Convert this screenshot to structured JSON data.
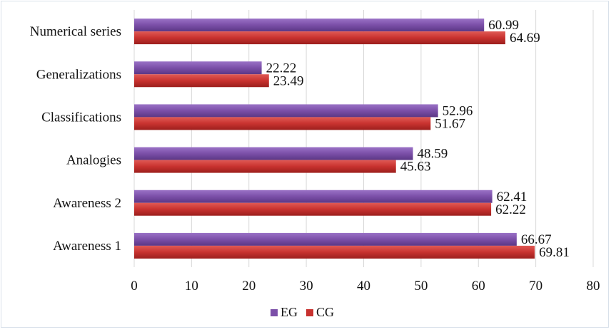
{
  "chart_data": {
    "type": "bar",
    "orientation": "horizontal",
    "title": "",
    "xlabel": "",
    "ylabel": "",
    "categories": [
      "Awareness 1",
      "Awareness 2",
      "Analogies",
      "Classifications",
      "Generalizations",
      "Numerical series"
    ],
    "series": [
      {
        "name": "EG",
        "color": "#7b4fa8",
        "values": [
          66.67,
          62.41,
          48.59,
          52.96,
          22.22,
          60.99
        ]
      },
      {
        "name": "CG",
        "color": "#c8322f",
        "values": [
          69.81,
          62.22,
          45.63,
          51.67,
          23.49,
          64.69
        ]
      }
    ],
    "xlim": [
      0,
      80
    ],
    "xticks": [
      0,
      10,
      20,
      30,
      40,
      50,
      60,
      70,
      80
    ],
    "grid": "vertical",
    "legend_position": "bottom"
  }
}
